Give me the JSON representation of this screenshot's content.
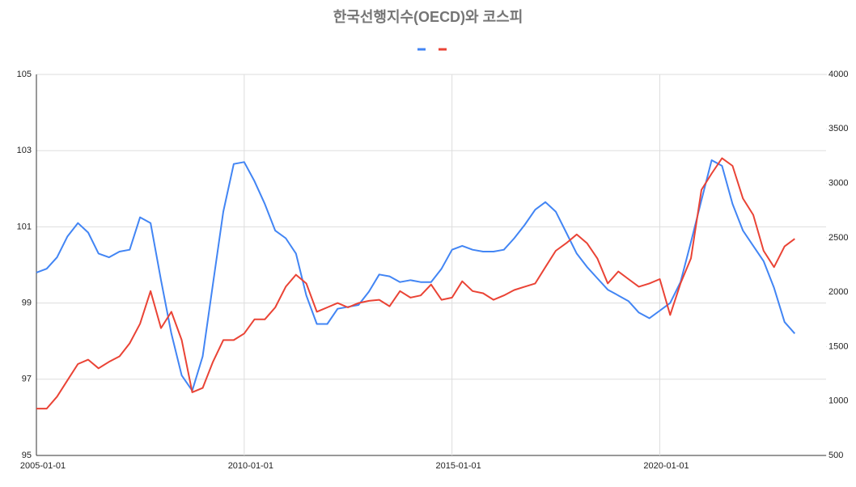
{
  "chart_data": {
    "type": "line",
    "title": "한국선행지수(OECD)와 코스피",
    "x": [
      "2005-01-01",
      "2005-04-01",
      "2005-07-01",
      "2005-10-01",
      "2006-01-01",
      "2006-04-01",
      "2006-07-01",
      "2006-10-01",
      "2007-01-01",
      "2007-04-01",
      "2007-07-01",
      "2007-10-01",
      "2008-01-01",
      "2008-04-01",
      "2008-07-01",
      "2008-10-01",
      "2009-01-01",
      "2009-04-01",
      "2009-07-01",
      "2009-10-01",
      "2010-01-01",
      "2010-04-01",
      "2010-07-01",
      "2010-10-01",
      "2011-01-01",
      "2011-04-01",
      "2011-07-01",
      "2011-10-01",
      "2012-01-01",
      "2012-04-01",
      "2012-07-01",
      "2012-10-01",
      "2013-01-01",
      "2013-04-01",
      "2013-07-01",
      "2013-10-01",
      "2014-01-01",
      "2014-04-01",
      "2014-07-01",
      "2014-10-01",
      "2015-01-01",
      "2015-04-01",
      "2015-07-01",
      "2015-10-01",
      "2016-01-01",
      "2016-04-01",
      "2016-07-01",
      "2016-10-01",
      "2017-01-01",
      "2017-04-01",
      "2017-07-01",
      "2017-10-01",
      "2018-01-01",
      "2018-04-01",
      "2018-07-01",
      "2018-10-01",
      "2019-01-01",
      "2019-04-01",
      "2019-07-01",
      "2019-10-01",
      "2020-01-01",
      "2020-04-01",
      "2020-07-01",
      "2020-10-01",
      "2021-01-01",
      "2021-04-01",
      "2021-07-01",
      "2021-10-01",
      "2022-01-01",
      "2022-04-01",
      "2022-07-01",
      "2022-10-01",
      "2023-01-01",
      "2023-04-01"
    ],
    "series": [
      {
        "color": "#4285f4",
        "values": [
          99.8,
          99.9,
          100.2,
          100.75,
          101.1,
          100.85,
          100.3,
          100.2,
          100.35,
          100.4,
          101.25,
          101.1,
          99.6,
          98.2,
          97.1,
          96.7,
          97.6,
          99.5,
          101.4,
          102.65,
          102.7,
          102.2,
          101.6,
          100.9,
          100.7,
          100.3,
          99.2,
          98.45,
          98.45,
          98.85,
          98.9,
          98.95,
          99.3,
          99.75,
          99.7,
          99.55,
          99.6,
          99.55,
          99.55,
          99.9,
          100.4,
          100.5,
          100.4,
          100.35,
          100.35,
          100.4,
          100.7,
          101.05,
          101.45,
          101.65,
          101.4,
          100.85,
          100.3,
          99.95,
          99.65,
          99.35,
          99.2,
          99.05,
          98.75,
          98.6,
          98.8,
          99.0,
          99.55,
          100.6,
          101.7,
          102.75,
          102.6,
          101.6,
          100.9,
          100.5,
          100.1,
          99.4,
          98.5,
          98.2
        ]
      },
      {
        "color": "#ea4335",
        "axis": "y2",
        "values": [
          930,
          930,
          1040,
          1190,
          1340,
          1380,
          1300,
          1360,
          1410,
          1530,
          1710,
          2010,
          1670,
          1820,
          1560,
          1080,
          1120,
          1360,
          1560,
          1560,
          1620,
          1750,
          1750,
          1860,
          2050,
          2160,
          2080,
          1820,
          1860,
          1900,
          1860,
          1900,
          1920,
          1930,
          1870,
          2010,
          1950,
          1970,
          2070,
          1930,
          1950,
          2100,
          2010,
          1990,
          1930,
          1970,
          2020,
          2050,
          2080,
          2230,
          2380,
          2450,
          2530,
          2450,
          2310,
          2080,
          2190,
          2120,
          2050,
          2080,
          2120,
          1790,
          2080,
          2310,
          2940,
          3090,
          3230,
          3160,
          2860,
          2710,
          2380,
          2230,
          2420,
          2490
        ]
      }
    ],
    "xlim": [
      "2005-01-01",
      "2024-01-01"
    ],
    "xticks": [
      "2005-01-01",
      "2010-01-01",
      "2015-01-01",
      "2020-01-01"
    ],
    "ylim": [
      95,
      105
    ],
    "yticks": [
      95,
      97,
      99,
      101,
      103,
      105
    ],
    "y2lim": [
      500,
      4000
    ],
    "y2ticks": [
      500,
      1000,
      1500,
      2000,
      2500,
      3000,
      3500,
      4000
    ],
    "grid": true
  }
}
